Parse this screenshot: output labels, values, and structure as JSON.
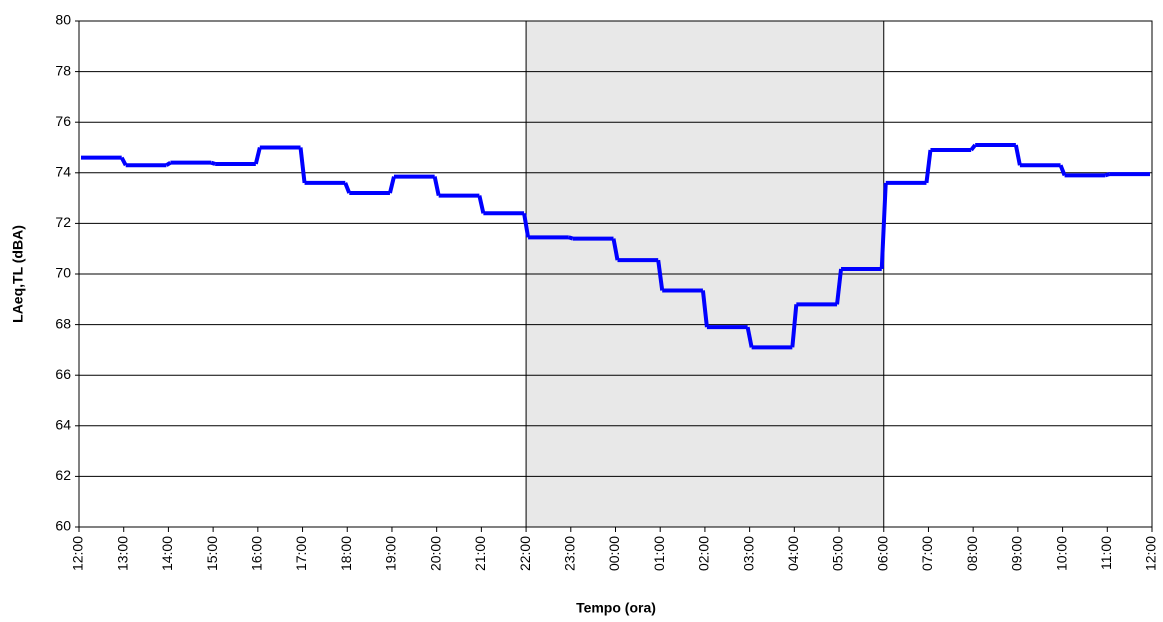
{
  "chart_data": {
    "type": "step-line",
    "x_label": "Tempo (ora)",
    "y_label": "LAeq,TL (dBA)",
    "categories": [
      "12:00",
      "13:00",
      "14:00",
      "15:00",
      "16:00",
      "17:00",
      "18:00",
      "19:00",
      "20:00",
      "21:00",
      "22:00",
      "23:00",
      "00:00",
      "01:00",
      "02:00",
      "03:00",
      "04:00",
      "05:00",
      "06:00",
      "07:00",
      "08:00",
      "09:00",
      "10:00",
      "11:00",
      "12:00"
    ],
    "series": [
      {
        "name": "LAeq,TL",
        "color": "#0000ff",
        "values": [
          74.6,
          74.3,
          74.4,
          74.35,
          75.0,
          73.6,
          73.2,
          73.85,
          73.1,
          72.4,
          71.45,
          71.4,
          70.55,
          69.35,
          67.9,
          67.1,
          68.8,
          70.2,
          73.6,
          74.9,
          75.1,
          74.3,
          73.9,
          73.95,
          null
        ]
      }
    ],
    "ylim": [
      60,
      80
    ],
    "yticks": [
      60,
      62,
      64,
      66,
      68,
      70,
      72,
      74,
      76,
      78,
      80
    ],
    "grid": true,
    "shaded_from": "22:00",
    "shaded_to": "06:00",
    "shade_color": "#e8e8e8"
  }
}
